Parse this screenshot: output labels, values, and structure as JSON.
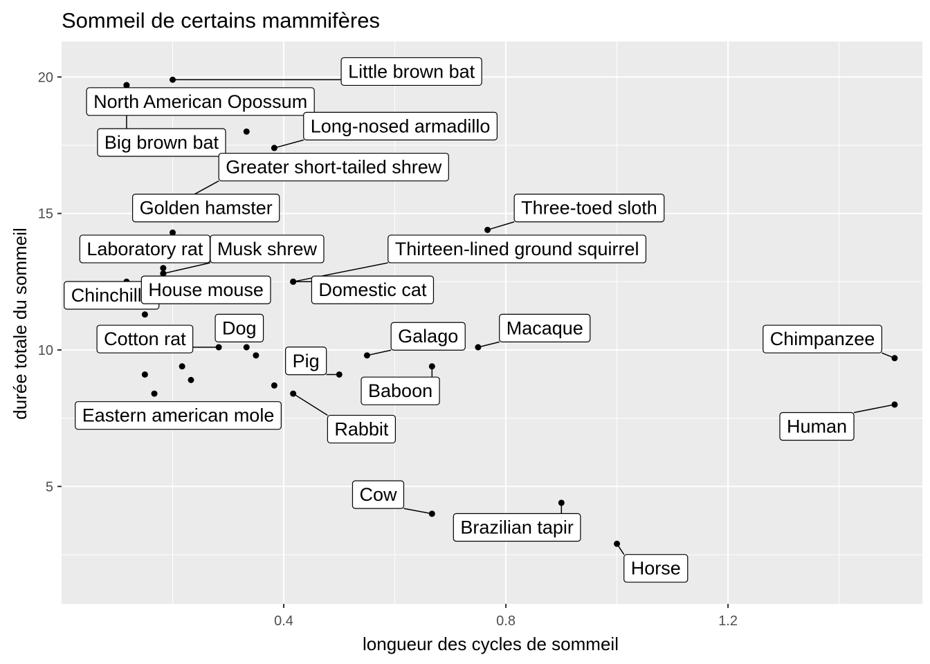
{
  "chart_data": {
    "type": "scatter",
    "title": "Sommeil de certains mammifères",
    "xlabel": "longueur des cycles de sommeil",
    "ylabel": "durée totale du sommeil",
    "xlim": [
      0.0,
      1.55
    ],
    "ylim": [
      0.7,
      21.3
    ],
    "x_ticks": [
      0.4,
      0.8,
      1.2
    ],
    "x_tick_labels": [
      "0.4",
      "0.8",
      "1.2"
    ],
    "y_ticks": [
      5,
      10,
      15,
      20
    ],
    "y_tick_labels": [
      "5",
      "10",
      "15",
      "20"
    ],
    "grid": true,
    "legend": "none",
    "point_color": "#000000",
    "panel_color": "#ebebeb",
    "points": [
      {
        "x": 0.2,
        "y": 19.9,
        "label": "Little brown bat",
        "lx": 0.63,
        "ly": 20.2
      },
      {
        "x": 0.117,
        "y": 19.7,
        "label": "North American Opossum",
        "lx": 0.25,
        "ly": 19.1
      },
      {
        "x": 0.117,
        "y": 19.7,
        "label": "Big brown bat",
        "lx": 0.18,
        "ly": 17.6
      },
      {
        "x": 0.333,
        "y": 18.0,
        "label": "",
        "lx": null,
        "ly": null
      },
      {
        "x": 0.383,
        "y": 17.4,
        "label": "Long-nosed armadillo",
        "lx": 0.61,
        "ly": 18.2
      },
      {
        "x": 0.167,
        "y": 14.9,
        "label": "Greater short-tailed shrew",
        "lx": 0.49,
        "ly": 16.7
      },
      {
        "x": 0.167,
        "y": 14.9,
        "label": "Golden hamster",
        "lx": 0.26,
        "ly": 15.2
      },
      {
        "x": 0.767,
        "y": 14.4,
        "label": "Three-toed sloth",
        "lx": 0.95,
        "ly": 15.2
      },
      {
        "x": 0.2,
        "y": 14.3,
        "label": "",
        "lx": null,
        "ly": null
      },
      {
        "x": 0.183,
        "y": 13.0,
        "label": "Laboratory rat",
        "lx": 0.15,
        "ly": 13.7
      },
      {
        "x": 0.183,
        "y": 12.8,
        "label": "Musk shrew",
        "lx": 0.37,
        "ly": 13.7
      },
      {
        "x": 0.417,
        "y": 12.5,
        "label": "Thirteen-lined ground squirrel",
        "lx": 0.82,
        "ly": 13.7
      },
      {
        "x": 0.117,
        "y": 12.5,
        "label": "Chinchilla",
        "lx": 0.09,
        "ly": 12.0
      },
      {
        "x": 0.183,
        "y": 12.8,
        "label": "House mouse",
        "lx": 0.26,
        "ly": 12.2
      },
      {
        "x": 0.417,
        "y": 12.5,
        "label": "Domestic cat",
        "lx": 0.56,
        "ly": 12.2
      },
      {
        "x": 0.15,
        "y": 11.3,
        "label": "",
        "lx": null,
        "ly": null
      },
      {
        "x": 0.283,
        "y": 10.1,
        "label": "Cotton rat",
        "lx": 0.15,
        "ly": 10.4
      },
      {
        "x": 0.333,
        "y": 10.1,
        "label": "Dog",
        "lx": 0.32,
        "ly": 10.8
      },
      {
        "x": 0.35,
        "y": 9.8,
        "label": "",
        "lx": null,
        "ly": null
      },
      {
        "x": 0.55,
        "y": 9.8,
        "label": "Galago",
        "lx": 0.66,
        "ly": 10.5
      },
      {
        "x": 0.75,
        "y": 10.1,
        "label": "Macaque",
        "lx": 0.87,
        "ly": 10.8
      },
      {
        "x": 1.5,
        "y": 9.7,
        "label": "Chimpanzee",
        "lx": 1.37,
        "ly": 10.4
      },
      {
        "x": 0.5,
        "y": 9.1,
        "label": "Pig",
        "lx": 0.44,
        "ly": 9.6
      },
      {
        "x": 0.667,
        "y": 9.4,
        "label": "Baboon",
        "lx": 0.61,
        "ly": 8.5
      },
      {
        "x": 0.217,
        "y": 9.4,
        "label": "",
        "lx": null,
        "ly": null
      },
      {
        "x": 0.233,
        "y": 8.9,
        "label": "",
        "lx": null,
        "ly": null
      },
      {
        "x": 0.15,
        "y": 9.1,
        "label": "",
        "lx": null,
        "ly": null
      },
      {
        "x": 0.383,
        "y": 8.7,
        "label": "",
        "lx": null,
        "ly": null
      },
      {
        "x": 0.167,
        "y": 8.4,
        "label": "Eastern american mole",
        "lx": 0.21,
        "ly": 7.6
      },
      {
        "x": 0.417,
        "y": 8.4,
        "label": "Rabbit",
        "lx": 0.54,
        "ly": 7.1
      },
      {
        "x": 1.5,
        "y": 8.0,
        "label": "Human",
        "lx": 1.36,
        "ly": 7.2
      },
      {
        "x": 0.667,
        "y": 4.0,
        "label": "Cow",
        "lx": 0.57,
        "ly": 4.7
      },
      {
        "x": 0.9,
        "y": 4.4,
        "label": "Brazilian tapir",
        "lx": 0.82,
        "ly": 3.5
      },
      {
        "x": 1.0,
        "y": 2.9,
        "label": "Horse",
        "lx": 1.07,
        "ly": 2.0
      }
    ]
  }
}
